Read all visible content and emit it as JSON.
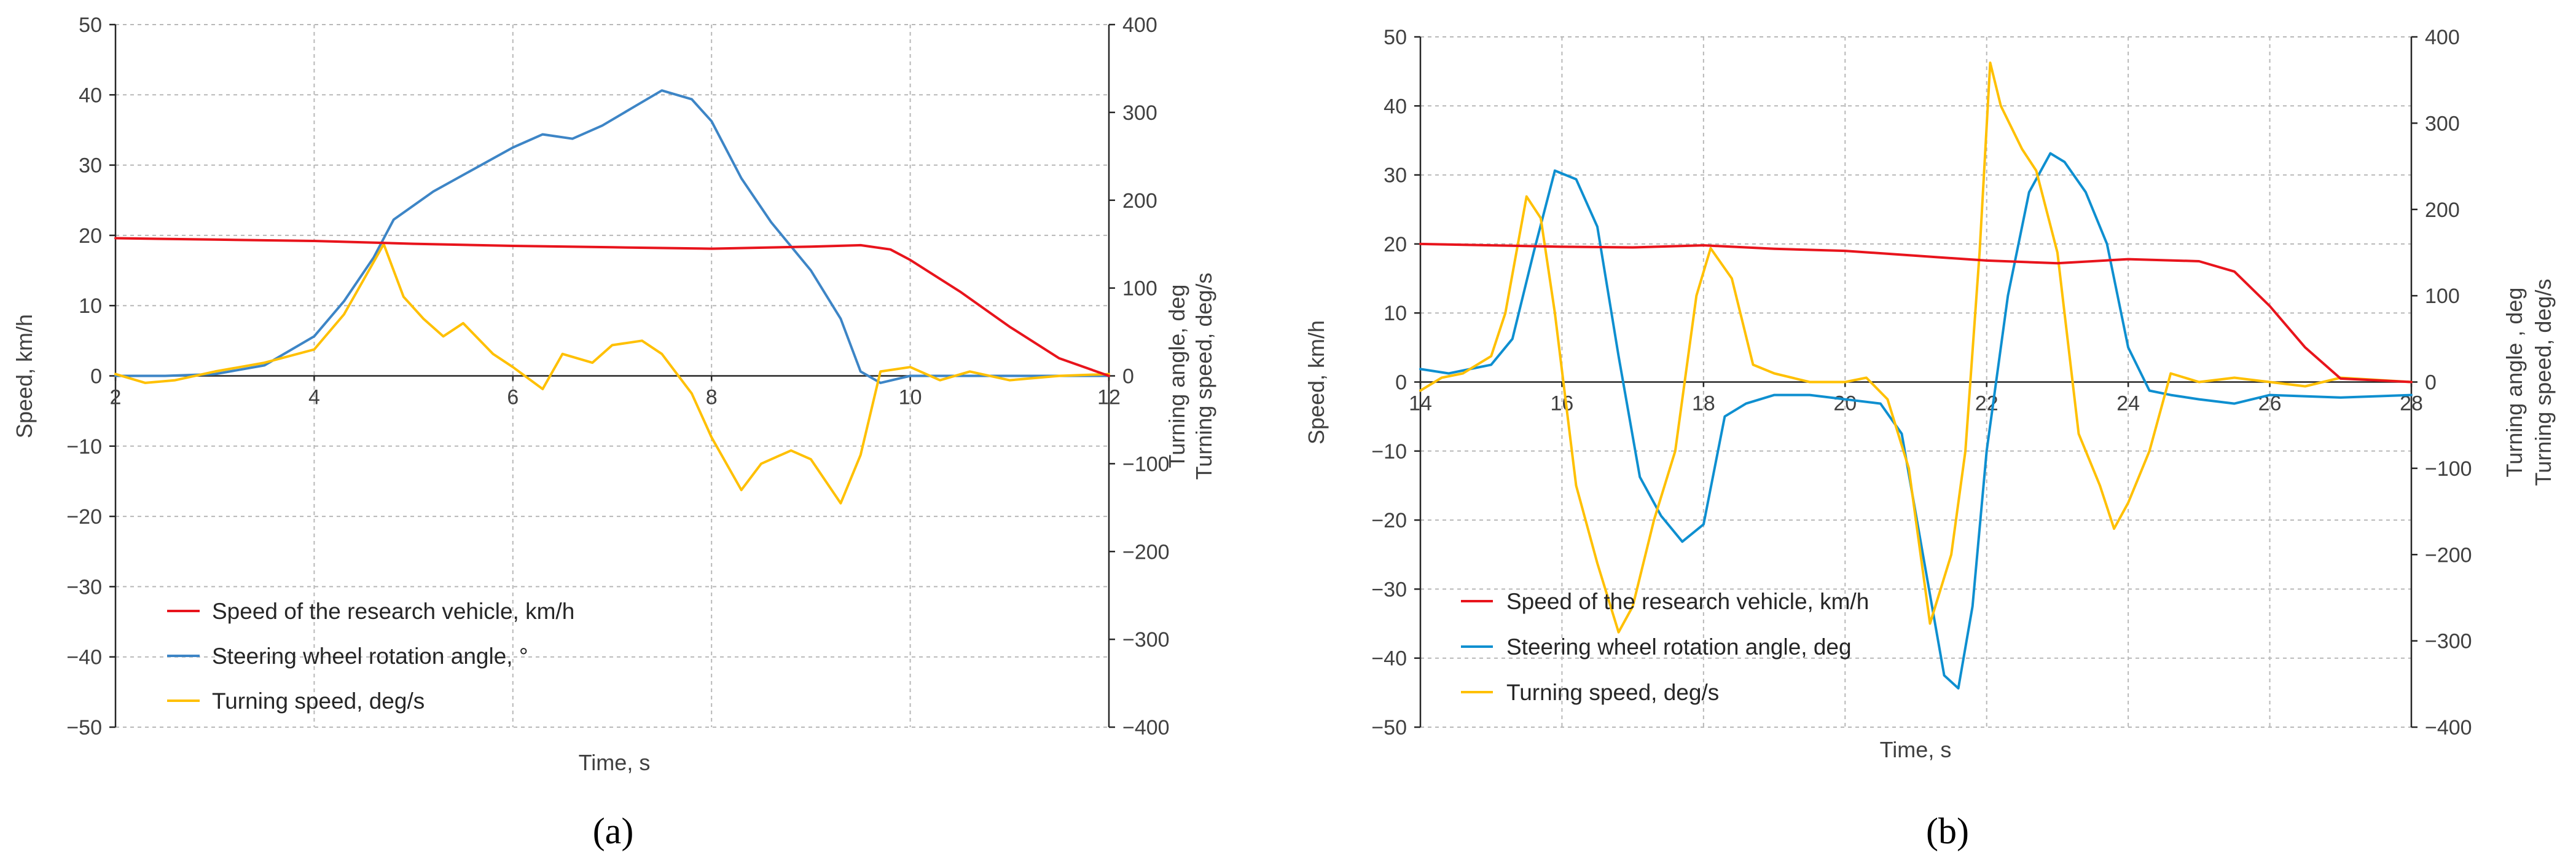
{
  "chart_data": [
    {
      "type": "line",
      "panel_label": "(a)",
      "xlabel": "Time, s",
      "ylabel_left": "Speed, km/h",
      "ylabel_right": [
        "Turning angle, deg",
        "Turning speed, deg/s"
      ],
      "xlim": [
        2,
        12
      ],
      "ylim_left": [
        -50,
        50
      ],
      "ylim_right": [
        -400,
        400
      ],
      "x_ticks": [
        2,
        4,
        6,
        8,
        10,
        12
      ],
      "y_left_ticks": [
        -50,
        -40,
        -30,
        -20,
        -10,
        0,
        10,
        20,
        30,
        40,
        50
      ],
      "y_right_ticks": [
        -400,
        -300,
        -200,
        -100,
        0,
        100,
        200,
        300,
        400
      ],
      "grid": true,
      "legend_position": "bottom-left",
      "series": [
        {
          "name": "Speed of the research vehicle, km/h",
          "axis": "left",
          "color": "#e8141c",
          "x": [
            2,
            3,
            4,
            5,
            6,
            7,
            8,
            9,
            9.5,
            9.8,
            10,
            10.5,
            11,
            11.5,
            12
          ],
          "y": [
            19.6,
            19.4,
            19.2,
            18.8,
            18.5,
            18.3,
            18.1,
            18.4,
            18.6,
            18.0,
            16.5,
            12.0,
            7.0,
            2.5,
            0
          ]
        },
        {
          "name": "Steering wheel rotation angle, °",
          "axis": "right",
          "color": "#3d85c6",
          "x": [
            2,
            2.5,
            3,
            3.5,
            4,
            4.3,
            4.6,
            4.8,
            5.2,
            5.6,
            6,
            6.3,
            6.6,
            6.9,
            7.2,
            7.5,
            7.8,
            8,
            8.3,
            8.6,
            9,
            9.3,
            9.5,
            9.7,
            10,
            10.5,
            11,
            12
          ],
          "y": [
            0,
            0,
            2,
            12,
            45,
            85,
            135,
            178,
            210,
            235,
            260,
            275,
            270,
            285,
            305,
            325,
            315,
            290,
            225,
            175,
            120,
            65,
            5,
            -8,
            0,
            0,
            0,
            0
          ]
        },
        {
          "name": "Turning speed, deg/s",
          "axis": "right",
          "color": "#ffc000",
          "x": [
            2,
            2.3,
            2.6,
            3,
            3.5,
            4,
            4.3,
            4.5,
            4.7,
            4.9,
            5.1,
            5.3,
            5.5,
            5.8,
            6,
            6.3,
            6.5,
            6.8,
            7,
            7.3,
            7.5,
            7.8,
            8,
            8.3,
            8.5,
            8.8,
            9,
            9.3,
            9.5,
            9.7,
            10,
            10.3,
            10.6,
            11,
            11.5,
            12
          ],
          "y": [
            2,
            -8,
            -5,
            5,
            15,
            30,
            70,
            110,
            150,
            90,
            65,
            45,
            60,
            25,
            10,
            -15,
            25,
            15,
            35,
            40,
            25,
            -20,
            -70,
            -130,
            -100,
            -85,
            -95,
            -145,
            -90,
            5,
            10,
            -5,
            5,
            -5,
            0,
            2
          ]
        }
      ]
    },
    {
      "type": "line",
      "panel_label": "(b)",
      "xlabel": "Time, s",
      "ylabel_left": "Speed, km/h",
      "ylabel_right": [
        "Turning angle , deg",
        "Turning speed, deg/s"
      ],
      "xlim": [
        14,
        28
      ],
      "ylim_left": [
        -50,
        50
      ],
      "ylim_right": [
        -400,
        400
      ],
      "x_ticks": [
        14,
        16,
        18,
        20,
        22,
        24,
        26,
        28
      ],
      "y_left_ticks": [
        -50,
        -40,
        -30,
        -20,
        -10,
        0,
        10,
        20,
        30,
        40,
        50
      ],
      "y_right_ticks": [
        -400,
        -300,
        -200,
        -100,
        0,
        100,
        200,
        300,
        400
      ],
      "grid": true,
      "legend_position": "bottom-left",
      "series": [
        {
          "name": "Speed of the research vehicle, km/h",
          "axis": "left",
          "color": "#e8141c",
          "x": [
            14,
            15,
            16,
            17,
            18,
            19,
            20,
            21,
            22,
            23,
            24,
            25,
            25.5,
            26,
            26.5,
            27,
            28
          ],
          "y": [
            20.0,
            19.8,
            19.6,
            19.5,
            19.8,
            19.3,
            19.0,
            18.3,
            17.6,
            17.2,
            17.8,
            17.5,
            16.0,
            11.0,
            5.0,
            0.5,
            0
          ]
        },
        {
          "name": "Steering wheel rotation angle, deg",
          "axis": "right",
          "color": "#0e8fd0",
          "x": [
            14,
            14.4,
            15,
            15.3,
            15.6,
            15.9,
            16.2,
            16.5,
            16.8,
            17.1,
            17.4,
            17.7,
            18,
            18.3,
            18.6,
            19,
            19.5,
            20,
            20.5,
            20.8,
            21.1,
            21.4,
            21.6,
            21.8,
            22,
            22.3,
            22.6,
            22.9,
            23.1,
            23.4,
            23.7,
            24,
            24.3,
            24.6,
            25,
            25.5,
            26,
            27,
            28
          ],
          "y": [
            15,
            10,
            20,
            50,
            150,
            245,
            235,
            180,
            30,
            -110,
            -155,
            -185,
            -165,
            -40,
            -25,
            -15,
            -15,
            -20,
            -25,
            -60,
            -200,
            -340,
            -355,
            -260,
            -80,
            100,
            220,
            265,
            255,
            220,
            160,
            40,
            -10,
            -15,
            -20,
            -25,
            -15,
            -18,
            -15
          ]
        },
        {
          "name": "Turning speed, deg/s",
          "axis": "right",
          "color": "#ffc000",
          "x": [
            14,
            14.3,
            14.6,
            15,
            15.2,
            15.5,
            15.7,
            15.9,
            16.2,
            16.5,
            16.8,
            17,
            17.3,
            17.6,
            17.9,
            18.1,
            18.4,
            18.7,
            19,
            19.5,
            20,
            20.3,
            20.6,
            20.9,
            21.2,
            21.5,
            21.7,
            21.9,
            22.05,
            22.2,
            22.5,
            22.7,
            23,
            23.3,
            23.6,
            23.8,
            24,
            24.3,
            24.6,
            25,
            25.5,
            26,
            26.5,
            27,
            28
          ],
          "y": [
            -10,
            5,
            10,
            30,
            80,
            215,
            190,
            80,
            -120,
            -210,
            -290,
            -260,
            -160,
            -80,
            100,
            155,
            120,
            20,
            10,
            0,
            0,
            5,
            -20,
            -100,
            -280,
            -200,
            -80,
            150,
            370,
            320,
            270,
            245,
            150,
            -60,
            -120,
            -170,
            -140,
            -80,
            10,
            0,
            5,
            0,
            -5,
            5,
            0
          ]
        }
      ]
    }
  ]
}
